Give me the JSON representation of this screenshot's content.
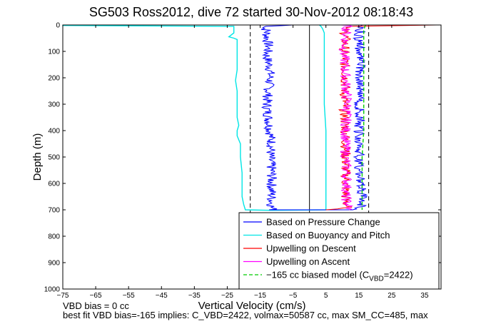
{
  "chart_data": {
    "type": "line",
    "title": "SG503 Ross2012, dive 72 started 30-Nov-2012 08:18:43",
    "xlabel": "Vertical Velocity (cm/s)",
    "ylabel": "Depth (m)",
    "xlim": [
      -75,
      40
    ],
    "ylim": [
      1000,
      0
    ],
    "y_reversed": true,
    "xticks": [
      -75,
      -65,
      -55,
      -45,
      -35,
      -25,
      -15,
      -5,
      5,
      15,
      25,
      35
    ],
    "yticks": [
      0,
      100,
      200,
      300,
      400,
      500,
      600,
      700,
      800,
      900,
      1000
    ],
    "legend_position": "bottom-right",
    "series": [
      {
        "name": "Based on Pressure Change",
        "color": "#0000ff",
        "style": "solid",
        "noisy": true,
        "depth": [
          0,
          5,
          10,
          20,
          40,
          80,
          120,
          160,
          200,
          250,
          300,
          350,
          400,
          450,
          500,
          550,
          600,
          650,
          690,
          700,
          700,
          690,
          650,
          600,
          550,
          500,
          450,
          400,
          350,
          300,
          250,
          200,
          150,
          100,
          50,
          20,
          10,
          5,
          0
        ],
        "velocity": [
          -5,
          -12,
          -14,
          -13,
          -13,
          -12.5,
          -13,
          -12,
          -12,
          -12.5,
          -13,
          -12.5,
          -12,
          -11.5,
          -12,
          -11.5,
          -11.5,
          -11.5,
          -11.5,
          -11,
          14,
          16,
          16,
          15.5,
          15,
          15,
          15.5,
          15,
          15.5,
          15,
          15.5,
          15.5,
          15.5,
          15.5,
          15,
          15.5,
          16,
          16,
          16
        ]
      },
      {
        "name": "Based on Buoyancy and Pitch",
        "color": "#00e5e5",
        "style": "solid",
        "noisy": false,
        "depth": [
          0,
          2,
          5,
          30,
          40,
          45,
          50,
          55,
          60,
          100,
          130,
          170,
          210,
          250,
          270,
          300,
          350,
          380,
          400,
          420,
          450,
          500,
          560,
          600,
          650,
          680,
          700,
          702,
          700,
          690,
          660,
          600,
          500,
          400,
          300,
          200,
          100,
          60,
          40,
          30,
          15,
          5,
          0
        ],
        "velocity": [
          -75,
          -75,
          -23,
          -23,
          -24,
          -24.5,
          -23,
          -22,
          -22,
          -22,
          -22,
          -22,
          -22.5,
          -22,
          -22,
          -22,
          -22,
          -21.5,
          -22,
          -22,
          -21,
          -21,
          -20.5,
          -20.5,
          -20.5,
          -20,
          -19.5,
          -12,
          5,
          5,
          5,
          5,
          5,
          5,
          4.5,
          4.5,
          4.5,
          4.5,
          4.5,
          4.5,
          4,
          3.5,
          3
        ]
      },
      {
        "name": "Upwelling on Descent",
        "color": "#ff0000",
        "style": "solid",
        "noisy": true,
        "depth": [
          0,
          5,
          10,
          50,
          100,
          200,
          300,
          400,
          500,
          600,
          650,
          690,
          700
        ],
        "velocity": [
          40,
          14,
          10.5,
          11,
          10.5,
          11,
          10.5,
          11,
          11,
          11,
          11,
          11.5,
          5
        ]
      },
      {
        "name": "Upwelling on Ascent",
        "color": "#ff00ff",
        "style": "solid",
        "noisy": true,
        "depth": [
          0,
          5,
          50,
          100,
          200,
          300,
          400,
          500,
          600,
          650,
          700
        ],
        "velocity": [
          11,
          11.5,
          11,
          10.5,
          11,
          11.5,
          11,
          11,
          11.5,
          11,
          12
        ]
      },
      {
        "name": "-165 cc biased model (C_VBD=2422)",
        "legend_label": "−165 cc biased model (C",
        "legend_sub": "VBD",
        "legend_tail": "=2422)",
        "color": "#00cc00",
        "style": "dashed",
        "noisy": false,
        "depth": [
          0,
          20,
          100,
          200,
          300,
          400,
          500,
          600,
          700
        ],
        "velocity": [
          17,
          16.5,
          16.5,
          16.5,
          16.5,
          16.5,
          16,
          16,
          16
        ]
      }
    ],
    "reference_lines": [
      {
        "x": -18,
        "color": "#000000",
        "style": "dashed"
      },
      {
        "x": 0,
        "color": "#000000",
        "style": "solid"
      },
      {
        "x": 18,
        "color": "#000000",
        "style": "dashed"
      }
    ]
  },
  "footer": {
    "line1": "VBD bias = 0 cc",
    "line2": "best fit VBD bias=-165 implies: C_VBD=2422, volmax=50587 cc, max SM_CC=485, max"
  }
}
